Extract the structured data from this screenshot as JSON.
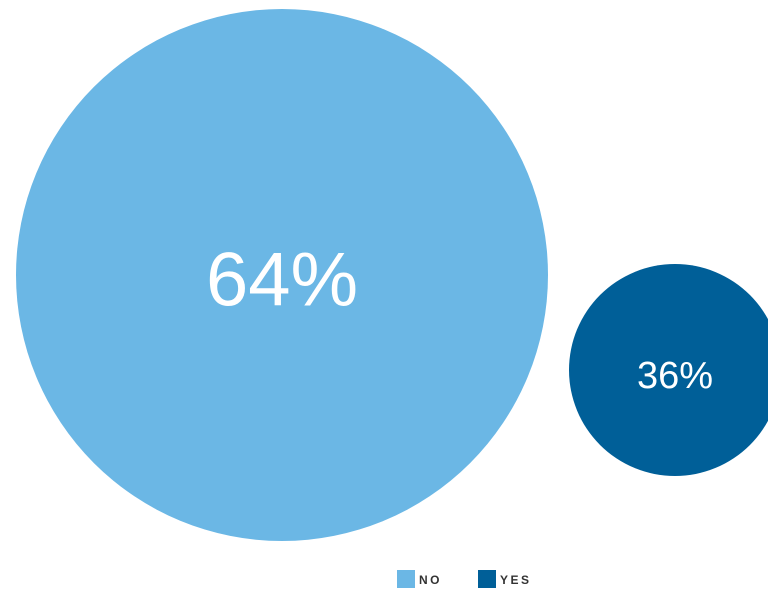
{
  "chart_data": {
    "type": "bubble",
    "series": [
      {
        "name": "NO",
        "value": 64,
        "label": "64%",
        "color": "#6bb7e5"
      },
      {
        "name": "YES",
        "value": 36,
        "label": "36%",
        "color": "#005f98"
      }
    ],
    "legend": {
      "placement": "bottom-center",
      "items": [
        "NO",
        "YES"
      ]
    }
  }
}
